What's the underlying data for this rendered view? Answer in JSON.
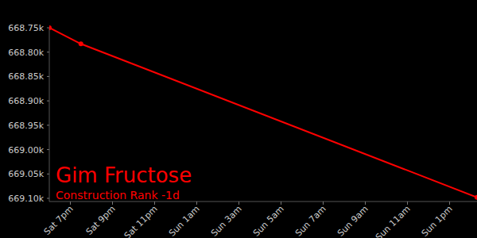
{
  "chart_data": {
    "type": "line",
    "title": "Gim Fructose",
    "subtitle": "Construction Rank -1d",
    "x": [
      18,
      19.5,
      38.3
    ],
    "series": [
      {
        "name": "Construction Rank",
        "color": "#ff0000",
        "marker": "circle",
        "values": [
          668750,
          668783,
          669098
        ]
      }
    ],
    "xlim": [
      18,
      38.3
    ],
    "xticks": [
      {
        "value": 19,
        "label": "Sat 7pm"
      },
      {
        "value": 21,
        "label": "Sat 9pm"
      },
      {
        "value": 23,
        "label": "Sat 11pm"
      },
      {
        "value": 25,
        "label": "Sun 1am"
      },
      {
        "value": 27,
        "label": "Sun 3am"
      },
      {
        "value": 29,
        "label": "Sun 5am"
      },
      {
        "value": 31,
        "label": "Sun 7am"
      },
      {
        "value": 33,
        "label": "Sun 9am"
      },
      {
        "value": 35,
        "label": "Sun 11am"
      },
      {
        "value": 37,
        "label": "Sun 1pm"
      }
    ],
    "ylim": [
      669100,
      668750
    ],
    "yticks": [
      {
        "value": 668750,
        "label": "668.75k"
      },
      {
        "value": 668800,
        "label": "668.80k"
      },
      {
        "value": 668850,
        "label": "668.85k"
      },
      {
        "value": 668900,
        "label": "668.90k"
      },
      {
        "value": 668950,
        "label": "668.95k"
      },
      {
        "value": 669000,
        "label": "669.00k"
      },
      {
        "value": 669050,
        "label": "669.05k"
      },
      {
        "value": 669100,
        "label": "669.10k"
      }
    ],
    "grid": false
  }
}
